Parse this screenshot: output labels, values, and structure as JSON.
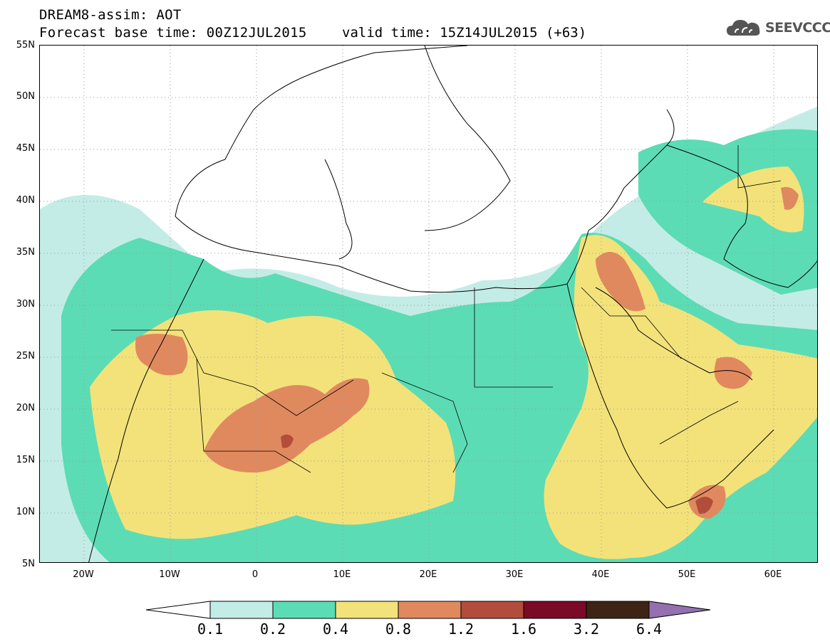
{
  "header": {
    "title": "DREAM8-assim: AOT",
    "base_time": "Forecast base time: 00Z12JUL2015",
    "valid_time": "valid time: 15Z14JUL2015 (+63)"
  },
  "logo": {
    "icon": "cloud-icon",
    "text": "SEEVCCC"
  },
  "map": {
    "lat_labels": [
      "55N",
      "50N",
      "45N",
      "40N",
      "35N",
      "30N",
      "25N",
      "20N",
      "15N",
      "10N",
      "5N"
    ],
    "lon_labels": [
      "20W",
      "10W",
      "0",
      "10E",
      "20E",
      "30E",
      "40E",
      "50E",
      "60E"
    ],
    "lat_range": [
      5,
      55
    ],
    "lon_range": [
      -25,
      65
    ],
    "grid": "dotted"
  },
  "legend": {
    "levels": [
      "0.1",
      "0.2",
      "0.4",
      "0.8",
      "1.2",
      "1.6",
      "3.2",
      "6.4"
    ],
    "colors": [
      "#ffffff",
      "#c4ece6",
      "#5cdcb4",
      "#f3e27a",
      "#e0895f",
      "#b24d3b",
      "#7a0a25",
      "#3e2415",
      "#9470b0"
    ]
  }
}
